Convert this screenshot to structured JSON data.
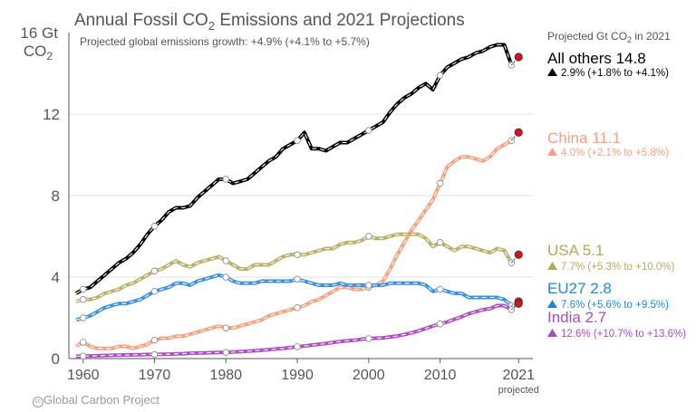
{
  "chart_data": {
    "type": "line",
    "title_main": "Annual Fossil CO",
    "title_sub": "2",
    "title_rest": " Emissions and 2021 Projections",
    "subtitle": "Projected global emissions growth: +4.9% (+4.1% to +5.7%)",
    "ylabel_line1": "16 Gt",
    "ylabel_line2": "CO",
    "ylabel_sub": "2",
    "xlim": [
      1958,
      2023
    ],
    "ylim": [
      0,
      16
    ],
    "yticks": [
      "0",
      "4",
      "8",
      "12"
    ],
    "xticks": [
      "1960",
      "1970",
      "1980",
      "1990",
      "2000",
      "2010",
      "2021"
    ],
    "xtick_note": "projected",
    "legend_header": "Projected Gt CO",
    "legend_header_sub": "2",
    "legend_header_rest": " in 2021",
    "series": [
      {
        "name": "All others 14.8",
        "growth": "2.9% (+1.8% to +4.1%)",
        "color": "#000000",
        "label_color": "#000000",
        "x": [
          1959,
          1960,
          1961,
          1962,
          1963,
          1964,
          1965,
          1966,
          1967,
          1968,
          1969,
          1970,
          1971,
          1972,
          1973,
          1974,
          1975,
          1976,
          1977,
          1978,
          1979,
          1980,
          1981,
          1982,
          1983,
          1984,
          1985,
          1986,
          1987,
          1988,
          1989,
          1990,
          1991,
          1992,
          1993,
          1994,
          1995,
          1996,
          1997,
          1998,
          1999,
          2000,
          2001,
          2002,
          2003,
          2004,
          2005,
          2006,
          2007,
          2008,
          2009,
          2010,
          2011,
          2012,
          2013,
          2014,
          2015,
          2016,
          2017,
          2018,
          2019,
          2020
        ],
        "y": [
          3.2,
          3.4,
          3.5,
          3.8,
          4.1,
          4.4,
          4.7,
          4.9,
          5.2,
          5.6,
          6.1,
          6.5,
          6.8,
          7.2,
          7.4,
          7.4,
          7.5,
          7.9,
          8.2,
          8.5,
          8.8,
          8.8,
          8.6,
          8.7,
          8.8,
          9.1,
          9.4,
          9.7,
          9.9,
          10.3,
          10.5,
          10.7,
          11.1,
          10.3,
          10.3,
          10.2,
          10.4,
          10.6,
          10.6,
          10.8,
          11.0,
          11.2,
          11.4,
          11.6,
          12.1,
          12.5,
          12.8,
          13.0,
          13.3,
          13.5,
          13.2,
          13.9,
          14.3,
          14.5,
          14.7,
          14.8,
          15.0,
          15.1,
          15.3,
          15.4,
          15.4,
          14.4
        ],
        "proj": 14.8
      },
      {
        "name": "China 11.1",
        "growth": "4.0% (+2.1% to +5.8%)",
        "color": "#f4a181",
        "label_color": "#f4a181",
        "x": [
          1959,
          1960,
          1961,
          1962,
          1963,
          1964,
          1965,
          1966,
          1967,
          1968,
          1969,
          1970,
          1971,
          1972,
          1973,
          1974,
          1975,
          1976,
          1977,
          1978,
          1979,
          1980,
          1981,
          1982,
          1983,
          1984,
          1985,
          1986,
          1987,
          1988,
          1989,
          1990,
          1991,
          1992,
          1993,
          1994,
          1995,
          1996,
          1997,
          1998,
          1999,
          2000,
          2001,
          2002,
          2003,
          2004,
          2005,
          2006,
          2007,
          2008,
          2009,
          2010,
          2011,
          2012,
          2013,
          2014,
          2015,
          2016,
          2017,
          2018,
          2019,
          2020
        ],
        "y": [
          0.6,
          0.8,
          0.6,
          0.5,
          0.5,
          0.5,
          0.6,
          0.6,
          0.5,
          0.6,
          0.7,
          0.9,
          1.0,
          1.0,
          1.1,
          1.1,
          1.2,
          1.3,
          1.4,
          1.5,
          1.6,
          1.5,
          1.5,
          1.6,
          1.7,
          1.8,
          1.9,
          2.1,
          2.2,
          2.3,
          2.4,
          2.5,
          2.6,
          2.8,
          2.9,
          3.1,
          3.3,
          3.5,
          3.5,
          3.4,
          3.4,
          3.5,
          3.6,
          3.8,
          4.4,
          5.1,
          5.7,
          6.3,
          6.8,
          7.3,
          7.8,
          8.6,
          9.4,
          9.7,
          9.9,
          9.9,
          9.8,
          9.7,
          9.9,
          10.3,
          10.5,
          10.7
        ],
        "proj": 11.1
      },
      {
        "name": "USA 5.1",
        "growth": "7.7% (+5.3% to +10.0%)",
        "color": "#b8b06a",
        "label_color": "#b3a95a",
        "x": [
          1959,
          1960,
          1961,
          1962,
          1963,
          1964,
          1965,
          1966,
          1967,
          1968,
          1969,
          1970,
          1971,
          1972,
          1973,
          1974,
          1975,
          1976,
          1977,
          1978,
          1979,
          1980,
          1981,
          1982,
          1983,
          1984,
          1985,
          1986,
          1987,
          1988,
          1989,
          1990,
          1991,
          1992,
          1993,
          1994,
          1995,
          1996,
          1997,
          1998,
          1999,
          2000,
          2001,
          2002,
          2003,
          2004,
          2005,
          2006,
          2007,
          2008,
          2009,
          2010,
          2011,
          2012,
          2013,
          2014,
          2015,
          2016,
          2017,
          2018,
          2019,
          2020
        ],
        "y": [
          2.8,
          2.9,
          2.9,
          3.0,
          3.2,
          3.3,
          3.4,
          3.6,
          3.7,
          3.9,
          4.1,
          4.3,
          4.4,
          4.6,
          4.8,
          4.6,
          4.5,
          4.7,
          4.8,
          4.9,
          5.0,
          4.8,
          4.6,
          4.4,
          4.4,
          4.6,
          4.6,
          4.6,
          4.8,
          5.0,
          5.1,
          5.1,
          5.1,
          5.2,
          5.3,
          5.4,
          5.4,
          5.6,
          5.7,
          5.7,
          5.8,
          6.0,
          5.9,
          5.9,
          6.0,
          6.1,
          6.1,
          6.1,
          6.1,
          5.9,
          5.5,
          5.7,
          5.5,
          5.3,
          5.5,
          5.5,
          5.4,
          5.3,
          5.2,
          5.4,
          5.3,
          4.7
        ],
        "proj": 5.1
      },
      {
        "name": "EU27 2.8",
        "growth": "7.6% (+5.6% to +9.5%)",
        "color": "#3d8fe0",
        "label_color": "#1f86e0",
        "x": [
          1959,
          1960,
          1961,
          1962,
          1963,
          1964,
          1965,
          1966,
          1967,
          1968,
          1969,
          1970,
          1971,
          1972,
          1973,
          1974,
          1975,
          1976,
          1977,
          1978,
          1979,
          1980,
          1981,
          1982,
          1983,
          1984,
          1985,
          1986,
          1987,
          1988,
          1989,
          1990,
          1991,
          1992,
          1993,
          1994,
          1995,
          1996,
          1997,
          1998,
          1999,
          2000,
          2001,
          2002,
          2003,
          2004,
          2005,
          2006,
          2007,
          2008,
          2009,
          2010,
          2011,
          2012,
          2013,
          2014,
          2015,
          2016,
          2017,
          2018,
          2019,
          2020
        ],
        "y": [
          1.9,
          2.0,
          2.1,
          2.3,
          2.5,
          2.6,
          2.7,
          2.7,
          2.8,
          2.9,
          3.1,
          3.3,
          3.4,
          3.5,
          3.7,
          3.7,
          3.6,
          3.8,
          3.9,
          4.0,
          4.1,
          4.0,
          3.8,
          3.7,
          3.7,
          3.7,
          3.8,
          3.8,
          3.8,
          3.8,
          3.8,
          3.9,
          3.8,
          3.7,
          3.6,
          3.6,
          3.6,
          3.7,
          3.6,
          3.6,
          3.6,
          3.6,
          3.6,
          3.6,
          3.7,
          3.7,
          3.7,
          3.7,
          3.7,
          3.6,
          3.3,
          3.4,
          3.3,
          3.2,
          3.2,
          3.0,
          3.0,
          3.0,
          3.0,
          3.0,
          2.9,
          2.6
        ],
        "proj": 2.8
      },
      {
        "name": "India 2.7",
        "growth": "12.6% (+10.7% to +13.6%)",
        "color": "#ad4fc1",
        "label_color": "#a24fbd",
        "x": [
          1959,
          1960,
          1961,
          1962,
          1963,
          1964,
          1965,
          1966,
          1967,
          1968,
          1969,
          1970,
          1971,
          1972,
          1973,
          1974,
          1975,
          1976,
          1977,
          1978,
          1979,
          1980,
          1981,
          1982,
          1983,
          1984,
          1985,
          1986,
          1987,
          1988,
          1989,
          1990,
          1991,
          1992,
          1993,
          1994,
          1995,
          1996,
          1997,
          1998,
          1999,
          2000,
          2001,
          2002,
          2003,
          2004,
          2005,
          2006,
          2007,
          2008,
          2009,
          2010,
          2011,
          2012,
          2013,
          2014,
          2015,
          2016,
          2017,
          2018,
          2019,
          2020
        ],
        "y": [
          0.11,
          0.12,
          0.13,
          0.14,
          0.15,
          0.16,
          0.17,
          0.18,
          0.18,
          0.19,
          0.2,
          0.2,
          0.21,
          0.22,
          0.23,
          0.24,
          0.26,
          0.27,
          0.28,
          0.29,
          0.3,
          0.3,
          0.32,
          0.34,
          0.36,
          0.38,
          0.41,
          0.44,
          0.47,
          0.5,
          0.54,
          0.58,
          0.62,
          0.66,
          0.7,
          0.74,
          0.79,
          0.84,
          0.87,
          0.9,
          0.95,
          0.98,
          1.0,
          1.02,
          1.06,
          1.11,
          1.18,
          1.26,
          1.36,
          1.48,
          1.6,
          1.7,
          1.8,
          1.93,
          2.05,
          2.2,
          2.3,
          2.4,
          2.45,
          2.6,
          2.6,
          2.4
        ],
        "proj": 2.7
      }
    ]
  },
  "footer": {
    "logo_text": "cc",
    "org": "Global Carbon Project"
  }
}
